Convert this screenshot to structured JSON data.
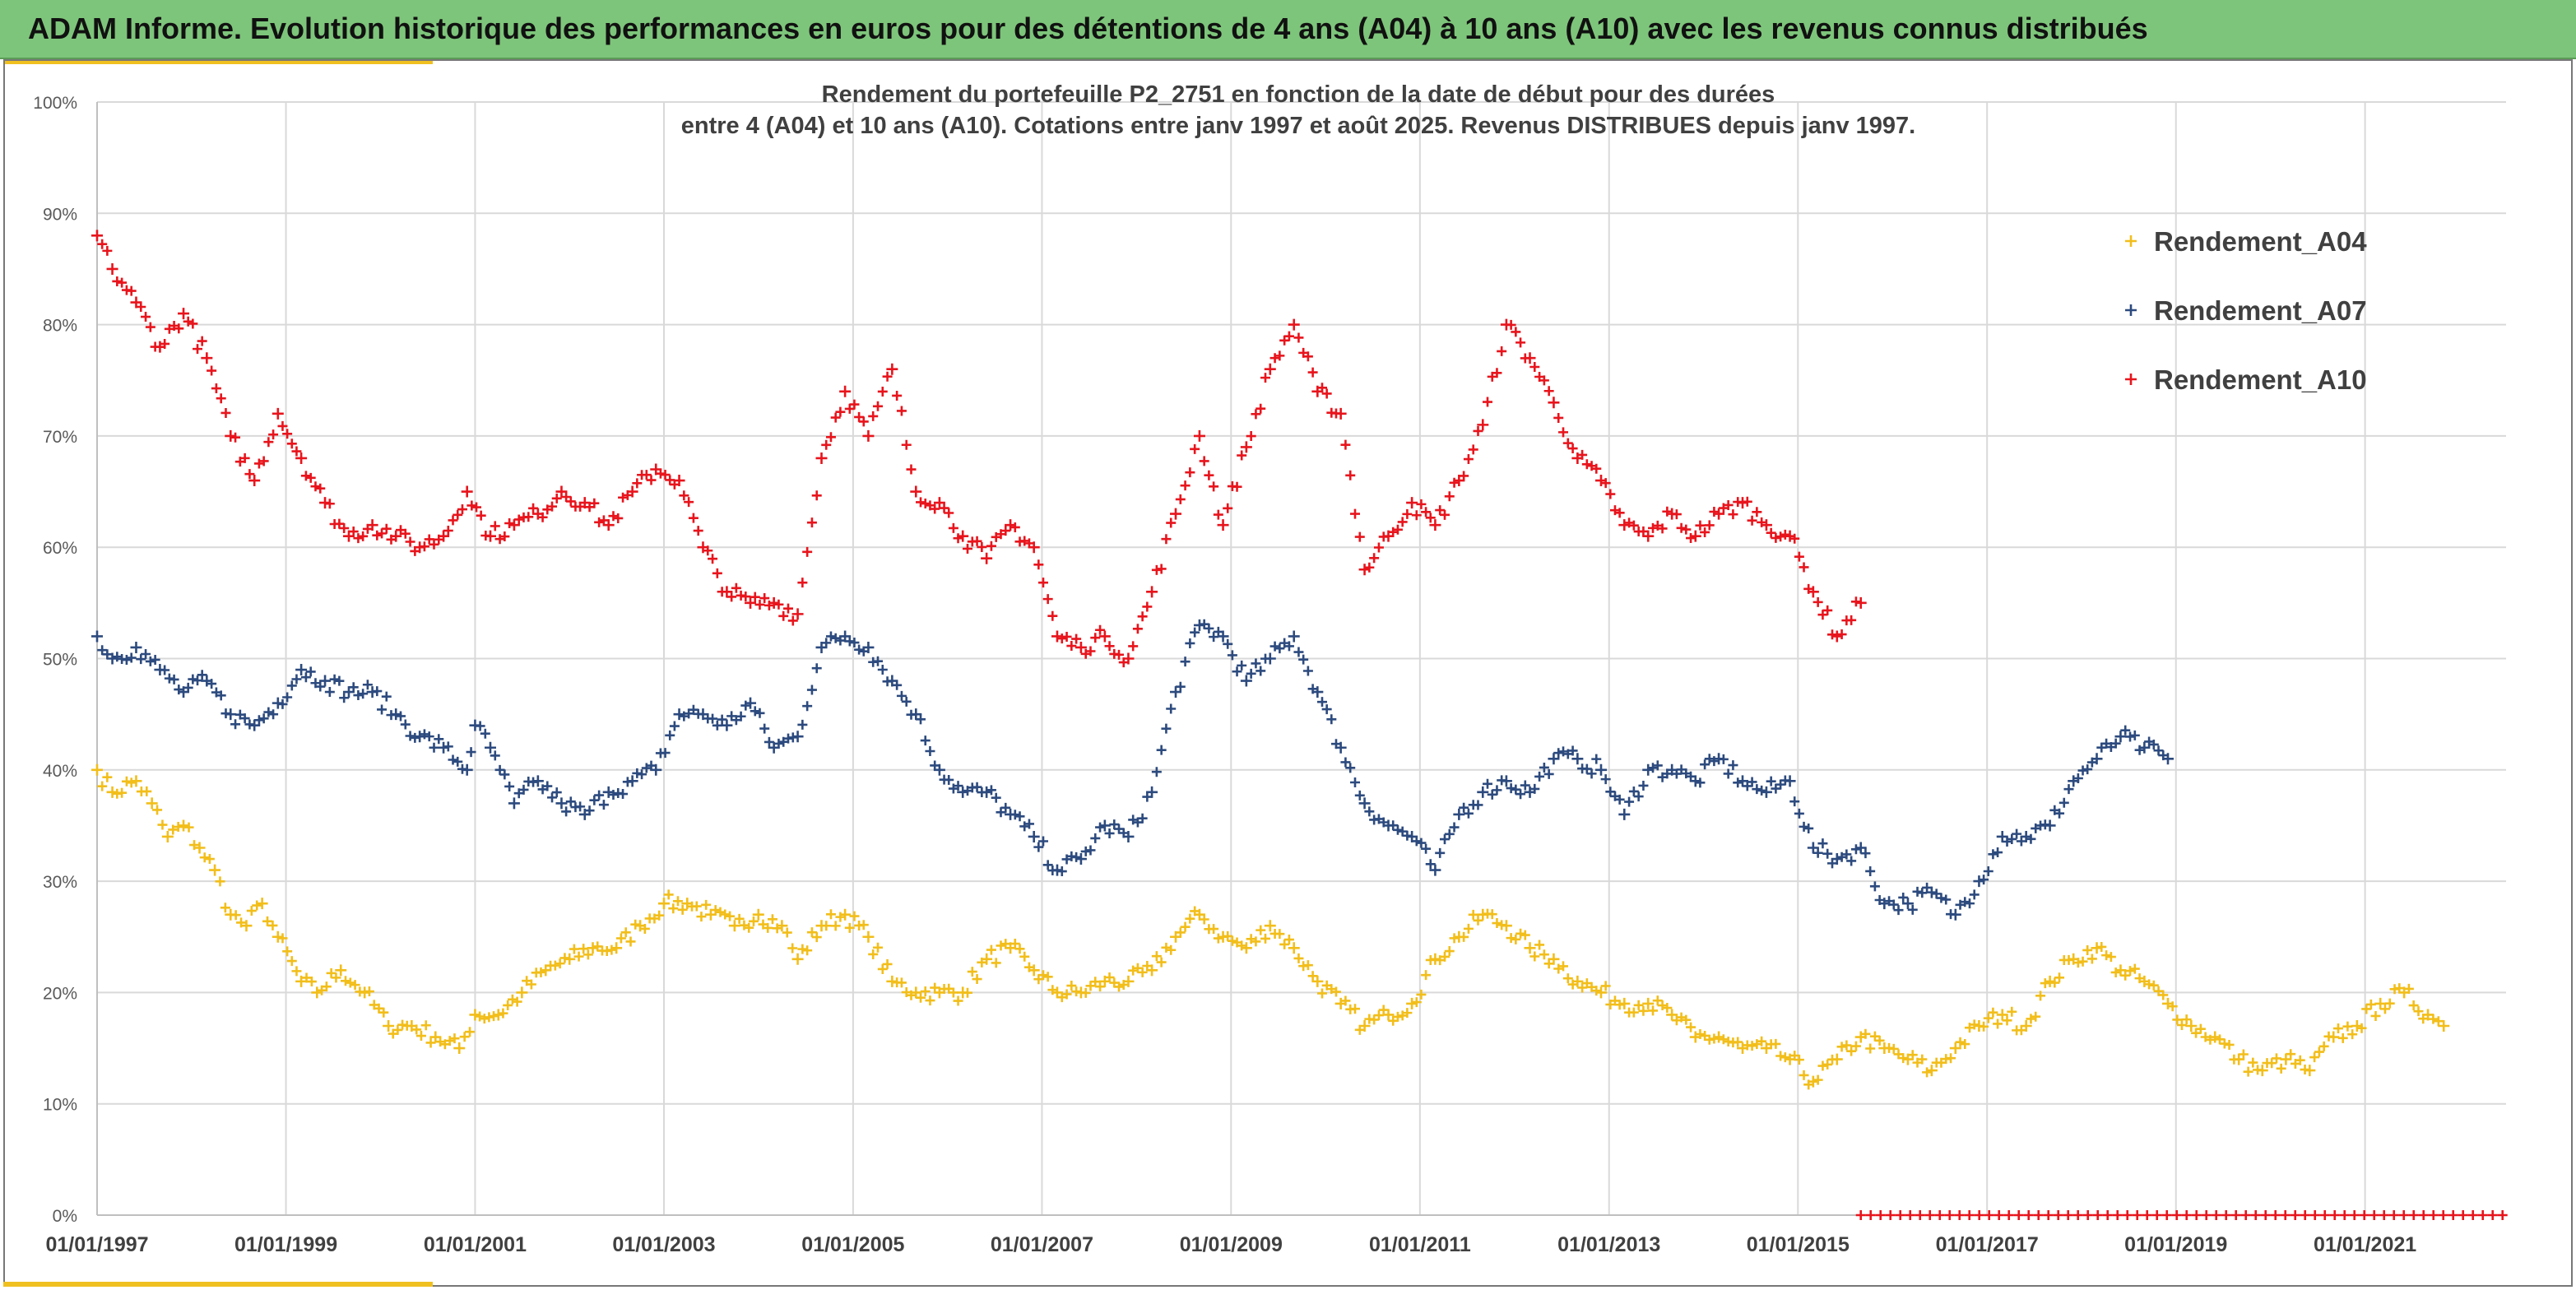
{
  "banner": {
    "title": "ADAM Informe. Evolution historique des performances en euros pour des détentions de 4 ans (A04) à 10 ans (A10) avec les revenus connus distribués"
  },
  "colors": {
    "banner_bg": "#7dc57a",
    "accent": "#f0c020",
    "a04": "#f2be1a",
    "a07": "#2c4a7e",
    "a10": "#e8141c",
    "grid": "#d9d9d9",
    "text": "#404040"
  },
  "chart_data": {
    "type": "scatter",
    "title_line1": "Rendement du portefeuille P2_2751 en fonction de la date de début pour des durées",
    "title_line2": "entre 4 (A04) et 10 ans (A10). Cotations entre janv 1997 et août 2025. Revenus DISTRIBUES depuis janv 1997.",
    "xlabel": "",
    "ylabel": "",
    "x_range": [
      "1997-01-01",
      "2022-06-30"
    ],
    "y_range": [
      0,
      100
    ],
    "y_ticks": [
      "0%",
      "10%",
      "20%",
      "30%",
      "40%",
      "50%",
      "60%",
      "70%",
      "80%",
      "90%",
      "100%"
    ],
    "x_ticks": [
      "01/01/1997",
      "01/01/1999",
      "01/01/2001",
      "01/01/2003",
      "01/01/2005",
      "01/01/2007",
      "01/01/2009",
      "01/01/2011",
      "01/01/2013",
      "01/01/2015",
      "01/01/2017",
      "01/01/2019",
      "01/01/2021"
    ],
    "grid": true,
    "marker": "+",
    "legend_position": "top-right",
    "series": [
      {
        "name": "Rendement_A04",
        "color": "#f2be1a",
        "points": [
          [
            "1997-01-01",
            40
          ],
          [
            "1997-03-01",
            38
          ],
          [
            "1997-06-01",
            39
          ],
          [
            "1997-08-01",
            37
          ],
          [
            "1997-10-01",
            34
          ],
          [
            "1997-12-01",
            35
          ],
          [
            "1998-02-01",
            33
          ],
          [
            "1998-04-01",
            31
          ],
          [
            "1998-06-01",
            27
          ],
          [
            "1998-08-01",
            26
          ],
          [
            "1998-10-01",
            28
          ],
          [
            "1998-12-01",
            25
          ],
          [
            "1999-03-01",
            21
          ],
          [
            "1999-05-01",
            20
          ],
          [
            "1999-08-01",
            22
          ],
          [
            "1999-11-01",
            20
          ],
          [
            "2000-02-01",
            17
          ],
          [
            "2000-05-01",
            17
          ],
          [
            "2000-08-01",
            16
          ],
          [
            "2000-11-01",
            15
          ],
          [
            "2001-01-01",
            18
          ],
          [
            "2001-04-01",
            18
          ],
          [
            "2001-07-01",
            20
          ],
          [
            "2001-10-01",
            22
          ],
          [
            "2002-01-01",
            23
          ],
          [
            "2002-04-01",
            24
          ],
          [
            "2002-07-01",
            24
          ],
          [
            "2002-10-01",
            26
          ],
          [
            "2003-01-01",
            28
          ],
          [
            "2003-04-01",
            28
          ],
          [
            "2003-07-01",
            27
          ],
          [
            "2003-10-01",
            26
          ],
          [
            "2004-01-01",
            27
          ],
          [
            "2004-04-01",
            26
          ],
          [
            "2004-06-01",
            23
          ],
          [
            "2004-09-01",
            26
          ],
          [
            "2004-12-01",
            27
          ],
          [
            "2005-03-01",
            25
          ],
          [
            "2005-06-01",
            21
          ],
          [
            "2005-09-01",
            20
          ],
          [
            "2005-12-01",
            20
          ],
          [
            "2006-03-01",
            20
          ],
          [
            "2006-06-01",
            23
          ],
          [
            "2006-09-01",
            24
          ],
          [
            "2006-12-01",
            22
          ],
          [
            "2007-03-01",
            20
          ],
          [
            "2007-06-01",
            20
          ],
          [
            "2007-09-01",
            21
          ],
          [
            "2007-12-01",
            21
          ],
          [
            "2008-03-01",
            22
          ],
          [
            "2008-06-01",
            25
          ],
          [
            "2008-09-01",
            27
          ],
          [
            "2008-12-01",
            25
          ],
          [
            "2009-03-01",
            24
          ],
          [
            "2009-06-01",
            26
          ],
          [
            "2009-09-01",
            24
          ],
          [
            "2009-12-01",
            21
          ],
          [
            "2010-03-01",
            19
          ],
          [
            "2010-06-01",
            17
          ],
          [
            "2010-09-01",
            18
          ],
          [
            "2010-12-01",
            19
          ],
          [
            "2011-03-01",
            23
          ],
          [
            "2011-06-01",
            25
          ],
          [
            "2011-09-01",
            27
          ],
          [
            "2011-12-01",
            26
          ],
          [
            "2012-03-01",
            24
          ],
          [
            "2012-06-01",
            23
          ],
          [
            "2012-09-01",
            21
          ],
          [
            "2012-12-01",
            20
          ],
          [
            "2013-03-01",
            19
          ],
          [
            "2013-06-01",
            19
          ],
          [
            "2013-09-01",
            18
          ],
          [
            "2013-12-01",
            16
          ],
          [
            "2014-03-01",
            16
          ],
          [
            "2014-06-01",
            15
          ],
          [
            "2014-09-01",
            15
          ],
          [
            "2014-12-01",
            14
          ],
          [
            "2015-03-01",
            12
          ],
          [
            "2015-06-01",
            14
          ],
          [
            "2015-09-01",
            16
          ],
          [
            "2015-12-01",
            15
          ],
          [
            "2016-03-01",
            14
          ],
          [
            "2016-06-01",
            13
          ],
          [
            "2016-09-01",
            15
          ],
          [
            "2016-12-01",
            17
          ],
          [
            "2017-03-01",
            18
          ],
          [
            "2017-06-01",
            17
          ],
          [
            "2017-09-01",
            21
          ],
          [
            "2017-12-01",
            23
          ],
          [
            "2018-03-01",
            24
          ],
          [
            "2018-06-01",
            22
          ],
          [
            "2018-09-01",
            21
          ],
          [
            "2018-12-01",
            19
          ],
          [
            "2019-03-01",
            17
          ],
          [
            "2019-06-01",
            16
          ],
          [
            "2019-09-01",
            14
          ],
          [
            "2019-12-01",
            13
          ],
          [
            "2020-03-01",
            14
          ],
          [
            "2020-06-01",
            13
          ],
          [
            "2020-09-01",
            16
          ],
          [
            "2020-12-01",
            17
          ],
          [
            "2021-03-01",
            19
          ],
          [
            "2021-06-01",
            20
          ],
          [
            "2021-09-01",
            18
          ],
          [
            "2021-11-01",
            17
          ]
        ]
      },
      {
        "name": "Rendement_A07",
        "color": "#2c4a7e",
        "points": [
          [
            "1997-01-01",
            52
          ],
          [
            "1997-03-01",
            50
          ],
          [
            "1997-06-01",
            51
          ],
          [
            "1997-09-01",
            49
          ],
          [
            "1997-12-01",
            47
          ],
          [
            "1998-03-01",
            48
          ],
          [
            "1998-06-01",
            45
          ],
          [
            "1998-09-01",
            44
          ],
          [
            "1998-12-01",
            46
          ],
          [
            "1999-03-01",
            49
          ],
          [
            "1999-06-01",
            48
          ],
          [
            "1999-09-01",
            47
          ],
          [
            "1999-12-01",
            47
          ],
          [
            "2000-03-01",
            45
          ],
          [
            "2000-06-01",
            43
          ],
          [
            "2000-09-01",
            42
          ],
          [
            "2000-12-01",
            40
          ],
          [
            "2001-01-01",
            44
          ],
          [
            "2001-03-01",
            42
          ],
          [
            "2001-06-01",
            37
          ],
          [
            "2001-09-01",
            39
          ],
          [
            "2001-12-01",
            37
          ],
          [
            "2002-03-01",
            36
          ],
          [
            "2002-06-01",
            38
          ],
          [
            "2002-09-01",
            39
          ],
          [
            "2002-12-01",
            40
          ],
          [
            "2003-03-01",
            45
          ],
          [
            "2003-06-01",
            45
          ],
          [
            "2003-09-01",
            44
          ],
          [
            "2003-12-01",
            46
          ],
          [
            "2004-03-01",
            42
          ],
          [
            "2004-06-01",
            43
          ],
          [
            "2004-09-01",
            51
          ],
          [
            "2004-12-01",
            52
          ],
          [
            "2005-03-01",
            51
          ],
          [
            "2005-06-01",
            48
          ],
          [
            "2005-09-01",
            45
          ],
          [
            "2005-12-01",
            40
          ],
          [
            "2006-03-01",
            38
          ],
          [
            "2006-06-01",
            38
          ],
          [
            "2006-09-01",
            36
          ],
          [
            "2006-12-01",
            34
          ],
          [
            "2007-03-01",
            31
          ],
          [
            "2007-06-01",
            32
          ],
          [
            "2007-09-01",
            35
          ],
          [
            "2007-12-01",
            34
          ],
          [
            "2008-03-01",
            38
          ],
          [
            "2008-06-01",
            47
          ],
          [
            "2008-09-01",
            53
          ],
          [
            "2008-12-01",
            52
          ],
          [
            "2009-03-01",
            48
          ],
          [
            "2009-06-01",
            50
          ],
          [
            "2009-09-01",
            52
          ],
          [
            "2009-12-01",
            47
          ],
          [
            "2010-03-01",
            42
          ],
          [
            "2010-06-01",
            37
          ],
          [
            "2010-09-01",
            35
          ],
          [
            "2010-12-01",
            34
          ],
          [
            "2011-03-01",
            31
          ],
          [
            "2011-06-01",
            36
          ],
          [
            "2011-09-01",
            38
          ],
          [
            "2011-12-01",
            39
          ],
          [
            "2012-03-01",
            38
          ],
          [
            "2012-06-01",
            41
          ],
          [
            "2012-09-01",
            41
          ],
          [
            "2012-12-01",
            40
          ],
          [
            "2013-03-01",
            36
          ],
          [
            "2013-06-01",
            40
          ],
          [
            "2013-09-01",
            40
          ],
          [
            "2013-12-01",
            39
          ],
          [
            "2014-03-01",
            41
          ],
          [
            "2014-06-01",
            39
          ],
          [
            "2014-09-01",
            38
          ],
          [
            "2014-12-01",
            39
          ],
          [
            "2015-03-01",
            33
          ],
          [
            "2015-06-01",
            32
          ],
          [
            "2015-09-01",
            33
          ],
          [
            "2015-12-01",
            28
          ],
          [
            "2016-03-01",
            28
          ],
          [
            "2016-06-01",
            29
          ],
          [
            "2016-09-01",
            27
          ],
          [
            "2016-12-01",
            30
          ],
          [
            "2017-03-01",
            34
          ],
          [
            "2017-06-01",
            34
          ],
          [
            "2017-09-01",
            35
          ],
          [
            "2017-12-01",
            39
          ],
          [
            "2018-03-01",
            41
          ],
          [
            "2018-06-01",
            43
          ],
          [
            "2018-09-01",
            42
          ],
          [
            "2018-12-01",
            41
          ]
        ]
      },
      {
        "name": "Rendement_A10",
        "color": "#e8141c",
        "points": [
          [
            "1997-01-01",
            88
          ],
          [
            "1997-03-01",
            85
          ],
          [
            "1997-06-01",
            82
          ],
          [
            "1997-09-01",
            78
          ],
          [
            "1997-12-01",
            81
          ],
          [
            "1998-03-01",
            77
          ],
          [
            "1998-06-01",
            70
          ],
          [
            "1998-09-01",
            66
          ],
          [
            "1998-12-01",
            72
          ],
          [
            "1999-03-01",
            68
          ],
          [
            "1999-06-01",
            64
          ],
          [
            "1999-09-01",
            61
          ],
          [
            "1999-12-01",
            62
          ],
          [
            "2000-03-01",
            61
          ],
          [
            "2000-06-01",
            60
          ],
          [
            "2000-09-01",
            61
          ],
          [
            "2000-12-01",
            65
          ],
          [
            "2001-03-01",
            61
          ],
          [
            "2001-06-01",
            62
          ],
          [
            "2001-09-01",
            63
          ],
          [
            "2001-12-01",
            65
          ],
          [
            "2002-03-01",
            64
          ],
          [
            "2002-06-01",
            62
          ],
          [
            "2002-09-01",
            65
          ],
          [
            "2002-12-01",
            67
          ],
          [
            "2003-03-01",
            66
          ],
          [
            "2003-06-01",
            60
          ],
          [
            "2003-09-01",
            56
          ],
          [
            "2003-12-01",
            55
          ],
          [
            "2004-03-01",
            55
          ],
          [
            "2004-06-01",
            54
          ],
          [
            "2004-09-01",
            68
          ],
          [
            "2004-12-01",
            74
          ],
          [
            "2005-03-01",
            70
          ],
          [
            "2005-06-01",
            76
          ],
          [
            "2005-09-01",
            65
          ],
          [
            "2005-12-01",
            64
          ],
          [
            "2006-03-01",
            61
          ],
          [
            "2006-06-01",
            59
          ],
          [
            "2006-09-01",
            62
          ],
          [
            "2006-12-01",
            60
          ],
          [
            "2007-03-01",
            52
          ],
          [
            "2007-06-01",
            51
          ],
          [
            "2007-09-01",
            52
          ],
          [
            "2007-12-01",
            50
          ],
          [
            "2008-03-01",
            56
          ],
          [
            "2008-06-01",
            63
          ],
          [
            "2008-09-01",
            70
          ],
          [
            "2008-12-01",
            62
          ],
          [
            "2009-03-01",
            69
          ],
          [
            "2009-06-01",
            76
          ],
          [
            "2009-09-01",
            80
          ],
          [
            "2009-12-01",
            74
          ],
          [
            "2010-03-01",
            72
          ],
          [
            "2010-06-01",
            58
          ],
          [
            "2010-09-01",
            61
          ],
          [
            "2010-12-01",
            64
          ],
          [
            "2011-03-01",
            62
          ],
          [
            "2011-06-01",
            66
          ],
          [
            "2011-09-01",
            71
          ],
          [
            "2011-12-01",
            80
          ],
          [
            "2012-03-01",
            77
          ],
          [
            "2012-06-01",
            73
          ],
          [
            "2012-09-01",
            68
          ],
          [
            "2012-12-01",
            66
          ],
          [
            "2013-03-01",
            62
          ],
          [
            "2013-06-01",
            61
          ],
          [
            "2013-09-01",
            63
          ],
          [
            "2013-12-01",
            61
          ],
          [
            "2014-03-01",
            63
          ],
          [
            "2014-06-01",
            64
          ],
          [
            "2014-09-01",
            62
          ],
          [
            "2014-12-01",
            61
          ],
          [
            "2015-03-01",
            56
          ],
          [
            "2015-06-01",
            52
          ],
          [
            "2015-09-01",
            55
          ]
        ]
      }
    ],
    "zero_marker_span": [
      "2015-09-01",
      "2022-06-30"
    ]
  }
}
